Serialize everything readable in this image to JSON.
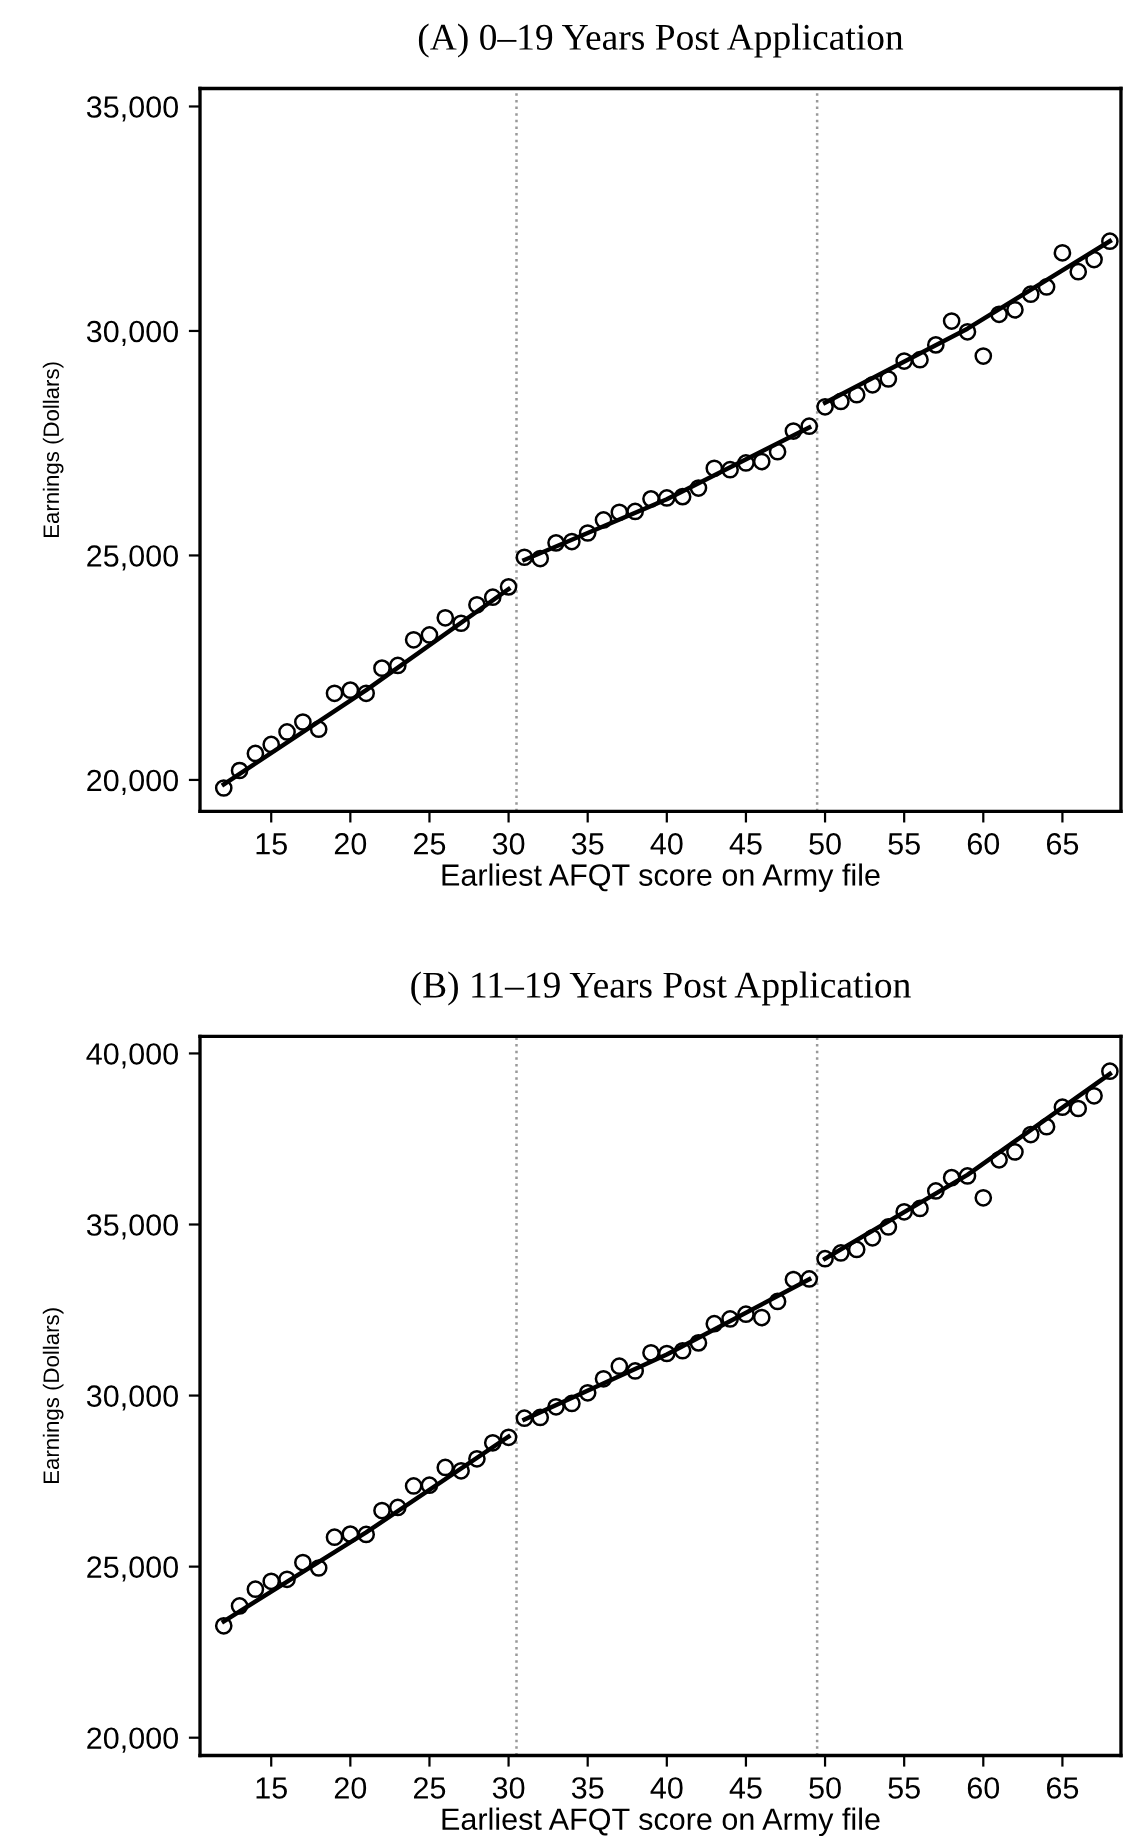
{
  "chart_data": [
    {
      "type": "scatter",
      "title": "(A) 0–19 Years Post Application",
      "xlabel": "Earliest AFQT score on Army file",
      "ylabel": "Earnings (Dollars)",
      "xlim": [
        10.5,
        68.7
      ],
      "ylim": [
        19300,
        35400
      ],
      "xticks": [
        15,
        20,
        25,
        30,
        35,
        40,
        45,
        50,
        55,
        60,
        65
      ],
      "yticks": [
        {
          "value": 20000,
          "label": "20,000"
        },
        {
          "value": 25000,
          "label": "25,000"
        },
        {
          "value": 30000,
          "label": "30,000"
        },
        {
          "value": 35000,
          "label": "35,000"
        }
      ],
      "grid": false,
      "legend": false,
      "x": [
        12,
        13,
        14,
        15,
        16,
        17,
        18,
        19,
        20,
        21,
        22,
        23,
        24,
        25,
        26,
        27,
        28,
        29,
        30,
        31,
        32,
        33,
        34,
        35,
        36,
        37,
        38,
        39,
        40,
        41,
        42,
        43,
        44,
        45,
        46,
        47,
        48,
        49,
        50,
        51,
        52,
        53,
        54,
        55,
        56,
        57,
        58,
        59,
        60,
        61,
        62,
        63,
        64,
        65,
        66,
        67,
        68
      ],
      "series": [
        {
          "marker": "circle",
          "color": "#000000",
          "values": [
            19820,
            20210,
            20590,
            20790,
            21070,
            21290,
            21130,
            21930,
            22000,
            21930,
            22490,
            22550,
            23120,
            23230,
            23610,
            23490,
            23900,
            24070,
            24300,
            24960,
            24930,
            25280,
            25310,
            25500,
            25790,
            25960,
            25980,
            26260,
            26280,
            26310,
            26500,
            26940,
            26910,
            27060,
            27090,
            27310,
            27770,
            27880,
            28310,
            28430,
            28580,
            28800,
            28930,
            29330,
            29360,
            29690,
            30220,
            29980,
            29440,
            30370,
            30470,
            30820,
            30980,
            31740,
            31320,
            31590,
            32000
          ]
        },
        {
          "type": "line",
          "color": "#000000",
          "line_style": "solid",
          "x": [
            12,
            21,
            30
          ],
          "values": [
            19900,
            22000,
            24250
          ]
        },
        {
          "type": "line",
          "color": "#000000",
          "line_style": "solid",
          "x": [
            31,
            40,
            49
          ],
          "values": [
            24900,
            26250,
            27850
          ]
        },
        {
          "type": "line",
          "color": "#000000",
          "line_style": "solid",
          "x": [
            50,
            59,
            68
          ],
          "values": [
            28400,
            30050,
            32000
          ]
        }
      ],
      "ref_lines": [
        {
          "axis": "x",
          "value": 30.5,
          "color": "#999999",
          "line_style": "dotted"
        },
        {
          "axis": "x",
          "value": 49.5,
          "color": "#999999",
          "line_style": "dotted"
        }
      ]
    },
    {
      "type": "scatter",
      "title": "(B) 11–19 Years Post Application",
      "xlabel": "Earliest AFQT score on Army file",
      "ylabel": "Earnings (Dollars)",
      "xlim": [
        10.5,
        68.7
      ],
      "ylim": [
        19480,
        40500
      ],
      "xticks": [
        15,
        20,
        25,
        30,
        35,
        40,
        45,
        50,
        55,
        60,
        65
      ],
      "yticks": [
        {
          "value": 20000,
          "label": "20,000"
        },
        {
          "value": 25000,
          "label": "25,000"
        },
        {
          "value": 30000,
          "label": "30,000"
        },
        {
          "value": 35000,
          "label": "35,000"
        },
        {
          "value": 40000,
          "label": "40,000"
        }
      ],
      "grid": false,
      "legend": false,
      "x": [
        12,
        13,
        14,
        15,
        16,
        17,
        18,
        19,
        20,
        21,
        22,
        23,
        24,
        25,
        26,
        27,
        28,
        29,
        30,
        31,
        32,
        33,
        34,
        35,
        36,
        37,
        38,
        39,
        40,
        41,
        42,
        43,
        44,
        45,
        46,
        47,
        48,
        49,
        50,
        51,
        52,
        53,
        54,
        55,
        56,
        57,
        58,
        59,
        60,
        61,
        62,
        63,
        64,
        65,
        66,
        67,
        68
      ],
      "series": [
        {
          "marker": "circle",
          "color": "#000000",
          "values": [
            23270,
            23850,
            24340,
            24570,
            24630,
            25120,
            24960,
            25860,
            25950,
            25940,
            26640,
            26730,
            27360,
            27380,
            27900,
            27800,
            28150,
            28620,
            28780,
            29340,
            29360,
            29670,
            29770,
            30080,
            30490,
            30860,
            30720,
            31250,
            31230,
            31310,
            31540,
            32100,
            32240,
            32380,
            32280,
            32750,
            33390,
            33410,
            34000,
            34170,
            34270,
            34610,
            34930,
            35370,
            35470,
            35980,
            36370,
            36420,
            35780,
            36890,
            37120,
            37630,
            37860,
            38430,
            38390,
            38760,
            39480
          ]
        },
        {
          "type": "line",
          "color": "#000000",
          "line_style": "solid",
          "x": [
            12,
            21,
            30
          ],
          "values": [
            23400,
            26000,
            28800
          ]
        },
        {
          "type": "line",
          "color": "#000000",
          "line_style": "solid",
          "x": [
            31,
            40,
            49
          ],
          "values": [
            29300,
            31200,
            33400
          ]
        },
        {
          "type": "line",
          "color": "#000000",
          "line_style": "solid",
          "x": [
            50,
            59,
            68
          ],
          "values": [
            34000,
            36450,
            39400
          ]
        }
      ],
      "ref_lines": [
        {
          "axis": "x",
          "value": 30.5,
          "color": "#999999",
          "line_style": "dotted"
        },
        {
          "axis": "x",
          "value": 49.5,
          "color": "#999999",
          "line_style": "dotted"
        }
      ]
    }
  ]
}
